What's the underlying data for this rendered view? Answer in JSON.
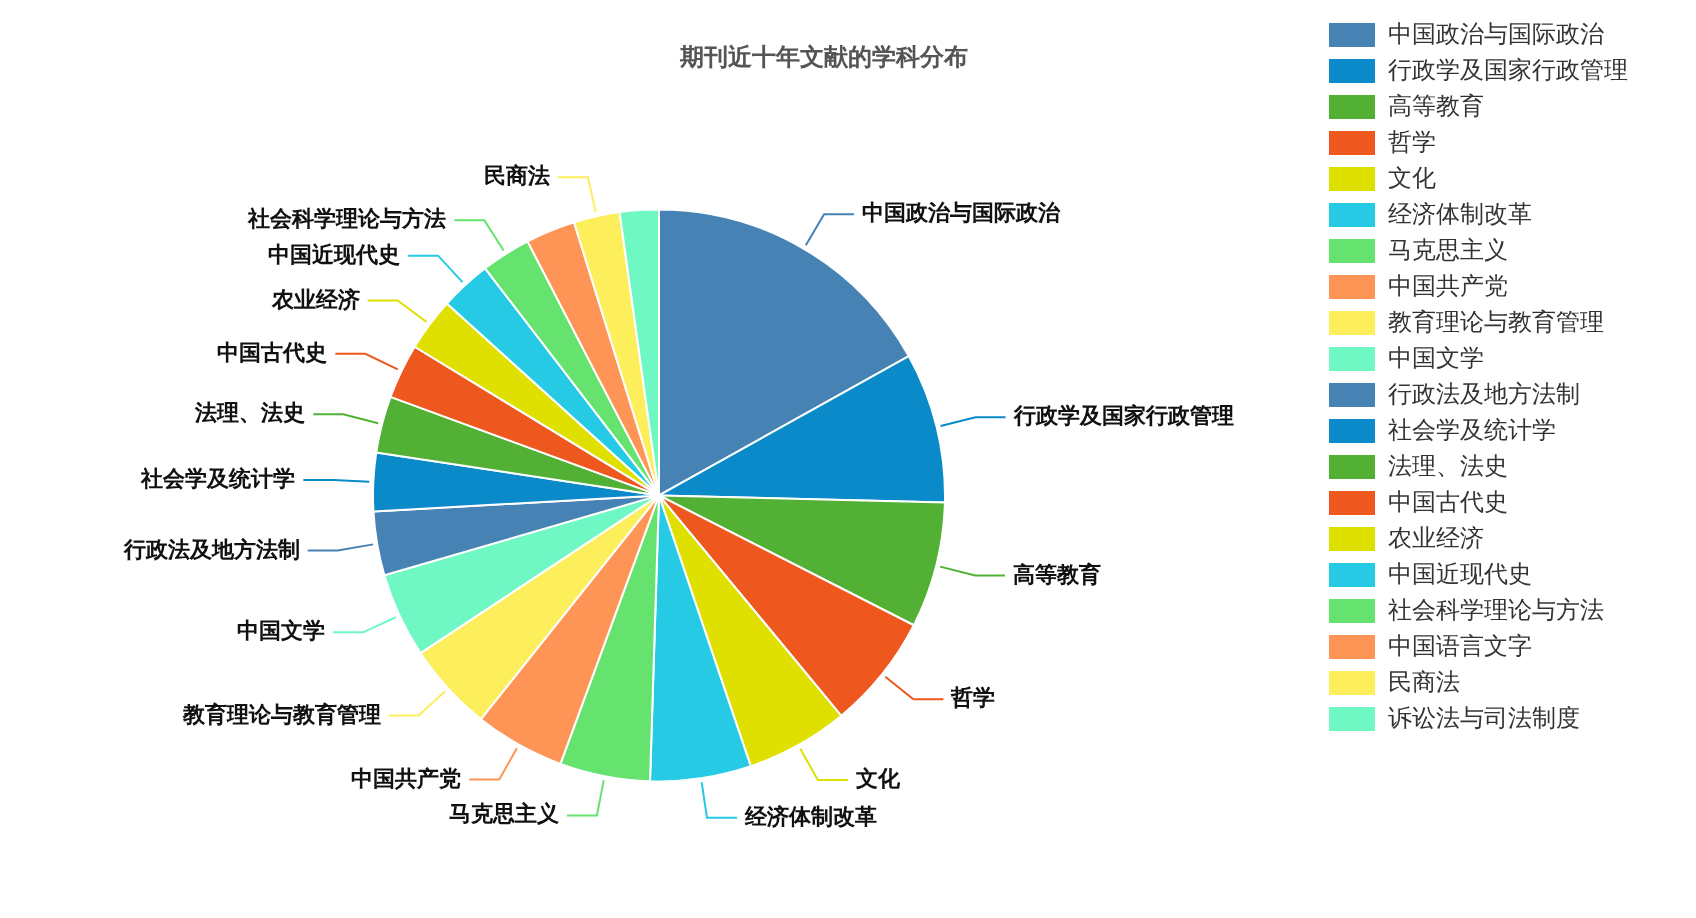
{
  "chart_data": {
    "type": "pie",
    "title": "期刊近十年文献的学科分布",
    "categories": [
      "中国政治与国际政治",
      "行政学及国家行政管理",
      "高等教育",
      "哲学",
      "文化",
      "经济体制改革",
      "马克思主义",
      "中国共产党",
      "教育理论与教育管理",
      "中国文学",
      "行政法及地方法制",
      "社会学及统计学",
      "法理、法史",
      "中国古代史",
      "农业经济",
      "中国近现代史",
      "社会科学理论与方法",
      "中国语言文字",
      "民商法",
      "诉讼法与司法制度"
    ],
    "values": [
      16.9,
      8.5,
      7.1,
      6.5,
      5.8,
      5.7,
      5.1,
      5.1,
      5.0,
      4.8,
      3.6,
      3.3,
      3.2,
      3.1,
      3.0,
      2.9,
      2.8,
      2.8,
      2.6,
      2.2
    ],
    "colors": [
      "#4682b4",
      "#0a8ac8",
      "#52b134",
      "#ee571e",
      "#dfe000",
      "#26cae4",
      "#66e26e",
      "#fe9455",
      "#fdee5c",
      "#6ff7c4",
      "#4682b4",
      "#0a8ac8",
      "#52b134",
      "#ee571e",
      "#dfe000",
      "#26cae4",
      "#66e26e",
      "#fe9455",
      "#fdee5c",
      "#6ff7c4"
    ],
    "legend": "right"
  }
}
